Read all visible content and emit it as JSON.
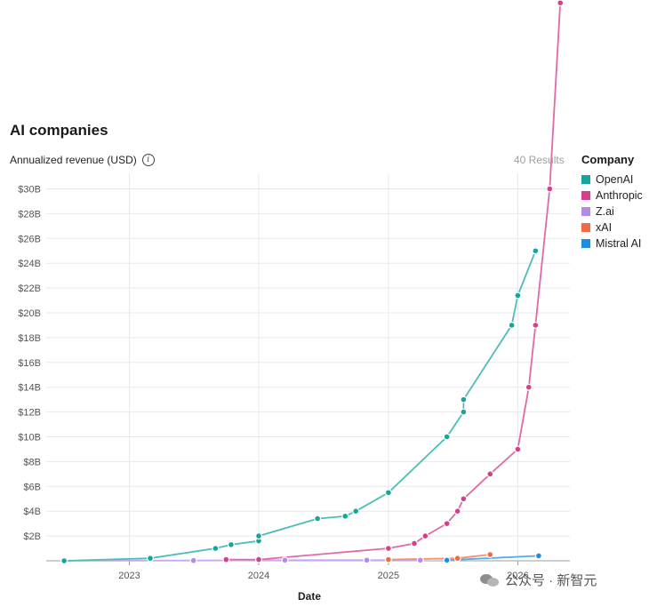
{
  "chart_data": {
    "type": "line",
    "title": "AI companies",
    "ylabel": "Annualized revenue (USD)",
    "xlabel": "Date",
    "results_count": "40 Results",
    "legend_title": "Company",
    "legend_position": "right",
    "grid": true,
    "x_ticks": [
      "2023",
      "2024",
      "2025",
      "2026"
    ],
    "y_ticks": [
      "$2B",
      "$4B",
      "$6B",
      "$8B",
      "$10B",
      "$12B",
      "$14B",
      "$16B",
      "$18B",
      "$20B",
      "$22B",
      "$24B",
      "$26B",
      "$28B",
      "$30B"
    ],
    "ylim": [
      0,
      30
    ],
    "xlim": [
      "2022-06",
      "2026-04"
    ],
    "series": [
      {
        "name": "OpenAI",
        "color": "#16a59c",
        "line_color": "#4dbdb6",
        "points": [
          {
            "x": "2022-07-01",
            "y": 0.0
          },
          {
            "x": "2023-03-01",
            "y": 0.2
          },
          {
            "x": "2023-09-01",
            "y": 1.0
          },
          {
            "x": "2023-10-15",
            "y": 1.3
          },
          {
            "x": "2024-01-01",
            "y": 1.6
          },
          {
            "x": "2024-01-01",
            "y": 2.0
          },
          {
            "x": "2024-06-15",
            "y": 3.4
          },
          {
            "x": "2024-09-01",
            "y": 3.6
          },
          {
            "x": "2024-10-01",
            "y": 4.0
          },
          {
            "x": "2025-01-01",
            "y": 5.5
          },
          {
            "x": "2025-06-15",
            "y": 10.0
          },
          {
            "x": "2025-08-01",
            "y": 12.0
          },
          {
            "x": "2025-08-01",
            "y": 13.0
          },
          {
            "x": "2025-12-15",
            "y": 19.0
          },
          {
            "x": "2026-01-01",
            "y": 21.4
          },
          {
            "x": "2026-02-20",
            "y": 25.0
          }
        ]
      },
      {
        "name": "Anthropic",
        "color": "#d53f8c",
        "line_color": "#e06aa6",
        "points": [
          {
            "x": "2023-10-01",
            "y": 0.1
          },
          {
            "x": "2024-01-01",
            "y": 0.1
          },
          {
            "x": "2025-01-01",
            "y": 1.0
          },
          {
            "x": "2025-03-15",
            "y": 1.4
          },
          {
            "x": "2025-04-15",
            "y": 2.0
          },
          {
            "x": "2025-06-15",
            "y": 3.0
          },
          {
            "x": "2025-07-15",
            "y": 4.0
          },
          {
            "x": "2025-08-01",
            "y": 5.0
          },
          {
            "x": "2025-10-15",
            "y": 7.0
          },
          {
            "x": "2026-01-01",
            "y": 9.0
          },
          {
            "x": "2026-02-01",
            "y": 14.0
          },
          {
            "x": "2026-02-20",
            "y": 19.0
          },
          {
            "x": "2026-04-01",
            "y": 30.0
          },
          {
            "x": "2026-05-01",
            "y": 45.0
          }
        ]
      },
      {
        "name": "Z.ai",
        "color": "#b28be6",
        "line_color": "#c7a8ef",
        "points": [
          {
            "x": "2022-07-01",
            "y": 0.0
          },
          {
            "x": "2023-07-01",
            "y": 0.02
          },
          {
            "x": "2024-03-15",
            "y": 0.05
          },
          {
            "x": "2024-11-01",
            "y": 0.05
          },
          {
            "x": "2025-04-01",
            "y": 0.05
          }
        ]
      },
      {
        "name": "xAI",
        "color": "#f06b3f",
        "line_color": "#f4906e",
        "points": [
          {
            "x": "2025-01-01",
            "y": 0.1
          },
          {
            "x": "2025-07-15",
            "y": 0.2
          },
          {
            "x": "2025-10-15",
            "y": 0.5
          }
        ]
      },
      {
        "name": "Mistral AI",
        "color": "#1d8fe1",
        "line_color": "#55aaea",
        "points": [
          {
            "x": "2025-06-15",
            "y": 0.05
          },
          {
            "x": "2026-03-01",
            "y": 0.4
          }
        ]
      }
    ]
  },
  "watermark": {
    "text": "公众号 · 新智元"
  }
}
